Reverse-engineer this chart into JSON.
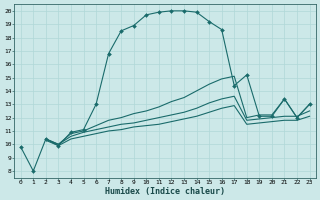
{
  "xlabel": "Humidex (Indice chaleur)",
  "bg_color": "#cce8e8",
  "line_color": "#1a6b6b",
  "grid_color": "#b0d8d8",
  "xlim": [
    -0.5,
    23.5
  ],
  "ylim": [
    7.5,
    20.5
  ],
  "xticks": [
    0,
    1,
    2,
    3,
    4,
    5,
    6,
    7,
    8,
    9,
    10,
    11,
    12,
    13,
    14,
    15,
    16,
    17,
    18,
    19,
    20,
    21,
    22,
    23
  ],
  "yticks": [
    8,
    9,
    10,
    11,
    12,
    13,
    14,
    15,
    16,
    17,
    18,
    19,
    20
  ],
  "line1_x": [
    0,
    1,
    2,
    3,
    4,
    5,
    6,
    7,
    8,
    9,
    10,
    11,
    12,
    13,
    14,
    15,
    16,
    17,
    18,
    19,
    20,
    21,
    22,
    23
  ],
  "line1_y": [
    9.8,
    8.0,
    10.4,
    9.9,
    10.9,
    11.1,
    13.0,
    16.8,
    18.5,
    18.9,
    19.7,
    19.9,
    20.0,
    20.0,
    19.9,
    19.2,
    18.6,
    14.4,
    15.2,
    12.1,
    12.1,
    13.4,
    12.0,
    13.0
  ],
  "line2_x": [
    2,
    3,
    4,
    5,
    6,
    7,
    8,
    9,
    10,
    11,
    12,
    13,
    14,
    15,
    16,
    17,
    18,
    19,
    20,
    21,
    22,
    23
  ],
  "line2_y": [
    10.4,
    10.0,
    10.8,
    11.0,
    11.4,
    11.8,
    12.0,
    12.3,
    12.5,
    12.8,
    13.2,
    13.5,
    14.0,
    14.5,
    14.9,
    15.1,
    12.0,
    12.2,
    12.2,
    13.4,
    12.0,
    13.0
  ],
  "line3_x": [
    2,
    3,
    4,
    5,
    6,
    7,
    8,
    9,
    10,
    11,
    12,
    13,
    14,
    15,
    16,
    17,
    18,
    19,
    20,
    21,
    22,
    23
  ],
  "line3_y": [
    10.4,
    10.0,
    10.6,
    10.9,
    11.1,
    11.3,
    11.5,
    11.6,
    11.8,
    12.0,
    12.2,
    12.4,
    12.7,
    13.1,
    13.4,
    13.6,
    11.8,
    11.9,
    12.0,
    12.1,
    12.1,
    12.5
  ],
  "line4_x": [
    2,
    3,
    4,
    5,
    6,
    7,
    8,
    9,
    10,
    11,
    12,
    13,
    14,
    15,
    16,
    17,
    18,
    19,
    20,
    21,
    22,
    23
  ],
  "line4_y": [
    10.3,
    9.9,
    10.4,
    10.6,
    10.8,
    11.0,
    11.1,
    11.3,
    11.4,
    11.5,
    11.7,
    11.9,
    12.1,
    12.4,
    12.7,
    12.9,
    11.5,
    11.6,
    11.7,
    11.8,
    11.8,
    12.1
  ]
}
